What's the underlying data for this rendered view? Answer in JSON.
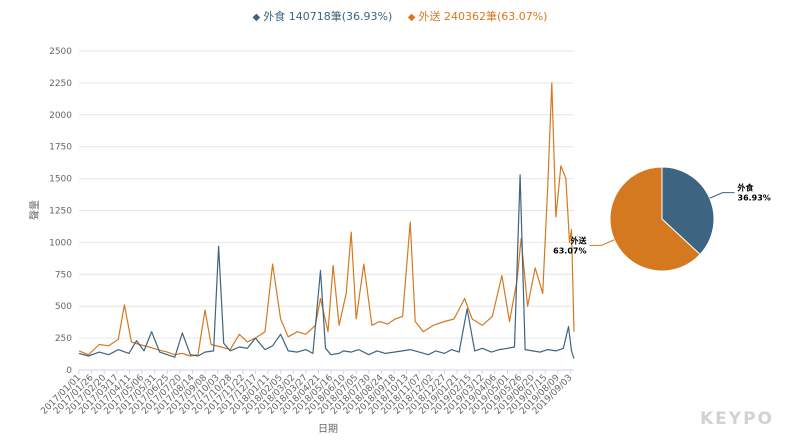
{
  "legend": {
    "items": [
      {
        "name": "外食",
        "label": "外食 140718筆(36.93%)",
        "color": "#3d6480"
      },
      {
        "name": "外送",
        "label": "外送 240362筆(63.07%)",
        "color": "#d4791f"
      }
    ]
  },
  "watermark": "KEYPO",
  "chart_data": [
    {
      "type": "line",
      "xlabel": "日期",
      "ylabel": "聲量",
      "ylim": [
        0,
        2500
      ],
      "yticks": [
        0,
        250,
        500,
        750,
        1000,
        1250,
        1500,
        1750,
        2000,
        2250,
        2500
      ],
      "grid": true,
      "legend_position": "top-center",
      "x_start": "2017/01/01",
      "x_end": "2019/09/10",
      "xticks": [
        "2017/01/01",
        "2017/01/26",
        "2017/02/20",
        "2017/03/17",
        "2017/04/11",
        "2017/05/06",
        "2017/05/31",
        "2017/06/25",
        "2017/07/20",
        "2017/08/14",
        "2017/09/08",
        "2017/10/03",
        "2017/10/28",
        "2017/11/22",
        "2017/12/17",
        "2018/01/11",
        "2018/02/05",
        "2018/03/02",
        "2018/03/27",
        "2018/04/21",
        "2018/05/16",
        "2018/06/10",
        "2018/07/05",
        "2018/07/30",
        "2018/08/24",
        "2018/09/18",
        "2018/10/13",
        "2018/11/07",
        "2018/12/02",
        "2018/12/27",
        "2019/01/21",
        "2019/02/15",
        "2019/03/12",
        "2019/04/06",
        "2019/05/01",
        "2019/05/26",
        "2019/06/20",
        "2019/07/15",
        "2019/08/09",
        "2019/09/03"
      ],
      "series": [
        {
          "name": "外食",
          "color": "#3d6480",
          "points": [
            [
              "2017/01/01",
              130
            ],
            [
              "2017/01/20",
              110
            ],
            [
              "2017/02/10",
              140
            ],
            [
              "2017/03/01",
              120
            ],
            [
              "2017/03/20",
              160
            ],
            [
              "2017/04/10",
              130
            ],
            [
              "2017/04/25",
              230
            ],
            [
              "2017/05/10",
              150
            ],
            [
              "2017/05/25",
              300
            ],
            [
              "2017/06/10",
              140
            ],
            [
              "2017/06/25",
              120
            ],
            [
              "2017/07/10",
              100
            ],
            [
              "2017/07/25",
              290
            ],
            [
              "2017/08/10",
              120
            ],
            [
              "2017/08/25",
              110
            ],
            [
              "2017/09/08",
              140
            ],
            [
              "2017/09/25",
              150
            ],
            [
              "2017/10/05",
              970
            ],
            [
              "2017/10/15",
              210
            ],
            [
              "2017/10/28",
              150
            ],
            [
              "2017/11/15",
              180
            ],
            [
              "2017/12/01",
              170
            ],
            [
              "2017/12/17",
              250
            ],
            [
              "2018/01/05",
              160
            ],
            [
              "2018/01/20",
              190
            ],
            [
              "2018/02/05",
              280
            ],
            [
              "2018/02/20",
              150
            ],
            [
              "2018/03/10",
              140
            ],
            [
              "2018/03/27",
              160
            ],
            [
              "2018/04/10",
              130
            ],
            [
              "2018/04/25",
              780
            ],
            [
              "2018/05/05",
              170
            ],
            [
              "2018/05/16",
              120
            ],
            [
              "2018/06/01",
              130
            ],
            [
              "2018/06/10",
              150
            ],
            [
              "2018/06/25",
              140
            ],
            [
              "2018/07/10",
              160
            ],
            [
              "2018/07/30",
              120
            ],
            [
              "2018/08/15",
              150
            ],
            [
              "2018/09/01",
              130
            ],
            [
              "2018/09/18",
              140
            ],
            [
              "2018/10/05",
              150
            ],
            [
              "2018/10/20",
              160
            ],
            [
              "2018/11/07",
              140
            ],
            [
              "2018/11/25",
              120
            ],
            [
              "2018/12/10",
              150
            ],
            [
              "2018/12/27",
              130
            ],
            [
              "2019/01/10",
              160
            ],
            [
              "2019/01/25",
              140
            ],
            [
              "2019/02/10",
              480
            ],
            [
              "2019/02/25",
              150
            ],
            [
              "2019/03/12",
              170
            ],
            [
              "2019/03/30",
              140
            ],
            [
              "2019/04/15",
              160
            ],
            [
              "2019/05/01",
              170
            ],
            [
              "2019/05/15",
              180
            ],
            [
              "2019/05/26",
              1530
            ],
            [
              "2019/06/05",
              160
            ],
            [
              "2019/06/20",
              150
            ],
            [
              "2019/07/05",
              140
            ],
            [
              "2019/07/20",
              160
            ],
            [
              "2019/08/05",
              150
            ],
            [
              "2019/08/20",
              170
            ],
            [
              "2019/08/30",
              340
            ],
            [
              "2019/09/05",
              150
            ],
            [
              "2019/09/10",
              90
            ]
          ]
        },
        {
          "name": "外送",
          "color": "#d4791f",
          "points": [
            [
              "2017/01/01",
              150
            ],
            [
              "2017/01/20",
              120
            ],
            [
              "2017/02/10",
              200
            ],
            [
              "2017/03/01",
              190
            ],
            [
              "2017/03/20",
              240
            ],
            [
              "2017/04/01",
              510
            ],
            [
              "2017/04/15",
              220
            ],
            [
              "2017/05/01",
              200
            ],
            [
              "2017/05/20",
              180
            ],
            [
              "2017/06/05",
              160
            ],
            [
              "2017/06/25",
              140
            ],
            [
              "2017/07/10",
              120
            ],
            [
              "2017/07/25",
              130
            ],
            [
              "2017/08/10",
              110
            ],
            [
              "2017/08/25",
              120
            ],
            [
              "2017/09/08",
              470
            ],
            [
              "2017/09/20",
              200
            ],
            [
              "2017/10/10",
              180
            ],
            [
              "2017/10/28",
              160
            ],
            [
              "2017/11/15",
              280
            ],
            [
              "2017/12/01",
              220
            ],
            [
              "2017/12/17",
              250
            ],
            [
              "2018/01/05",
              300
            ],
            [
              "2018/01/20",
              830
            ],
            [
              "2018/02/05",
              400
            ],
            [
              "2018/02/20",
              260
            ],
            [
              "2018/03/10",
              300
            ],
            [
              "2018/03/27",
              280
            ],
            [
              "2018/04/15",
              350
            ],
            [
              "2018/04/25",
              560
            ],
            [
              "2018/05/10",
              300
            ],
            [
              "2018/05/20",
              820
            ],
            [
              "2018/06/01",
              350
            ],
            [
              "2018/06/15",
              600
            ],
            [
              "2018/06/25",
              1080
            ],
            [
              "2018/07/05",
              400
            ],
            [
              "2018/07/20",
              830
            ],
            [
              "2018/08/05",
              350
            ],
            [
              "2018/08/20",
              380
            ],
            [
              "2018/09/05",
              360
            ],
            [
              "2018/09/20",
              400
            ],
            [
              "2018/10/05",
              420
            ],
            [
              "2018/10/20",
              1160
            ],
            [
              "2018/10/30",
              380
            ],
            [
              "2018/11/15",
              300
            ],
            [
              "2018/12/05",
              350
            ],
            [
              "2018/12/27",
              380
            ],
            [
              "2019/01/15",
              400
            ],
            [
              "2019/02/05",
              560
            ],
            [
              "2019/02/20",
              400
            ],
            [
              "2019/03/12",
              350
            ],
            [
              "2019/04/01",
              420
            ],
            [
              "2019/04/20",
              740
            ],
            [
              "2019/05/05",
              380
            ],
            [
              "2019/05/20",
              700
            ],
            [
              "2019/05/28",
              1030
            ],
            [
              "2019/06/10",
              500
            ],
            [
              "2019/06/25",
              800
            ],
            [
              "2019/07/10",
              600
            ],
            [
              "2019/07/20",
              1450
            ],
            [
              "2019/07/28",
              2250
            ],
            [
              "2019/08/05",
              1200
            ],
            [
              "2019/08/15",
              1600
            ],
            [
              "2019/08/25",
              1500
            ],
            [
              "2019/09/01",
              1000
            ],
            [
              "2019/09/05",
              1100
            ],
            [
              "2019/09/10",
              300
            ]
          ]
        }
      ]
    },
    {
      "type": "pie",
      "slices": [
        {
          "name": "外食",
          "value": 36.93,
          "label": "36.93%",
          "color": "#3d6480"
        },
        {
          "name": "外送",
          "value": 63.07,
          "label": "63.07%",
          "color": "#d4791f"
        }
      ]
    }
  ]
}
